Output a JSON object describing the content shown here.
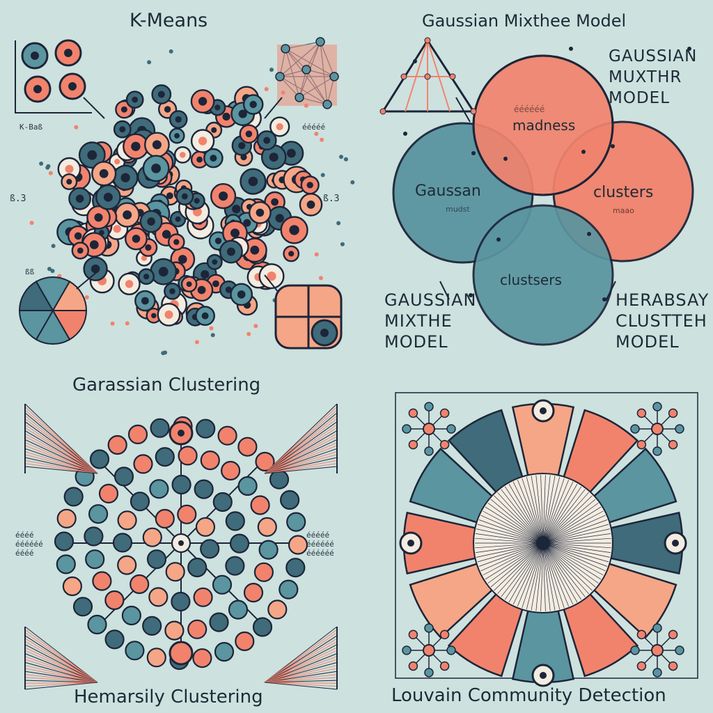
{
  "colors": {
    "background": "#cde1df",
    "coral": "#f1836d",
    "salmon": "#f5a686",
    "teal": "#5a95a0",
    "teal_dark": "#3f6b7a",
    "navy": "#1d2538",
    "cream": "#f3ece0"
  },
  "panels": {
    "kmeans": {
      "title": "K-Means",
      "side_left": "K-Baß",
      "side_right": "ééééé",
      "axis_left": "ß.3",
      "axis_right": "ß.3",
      "pie_note": "ßß"
    },
    "gmm": {
      "title": "Gaussian Mixthee Model",
      "corner_label": "GAUSSIAN\nMUXTHR\nMODEL",
      "circle_top": "madness",
      "circle_top_faint": "éééééé",
      "circle_left": "Gaussan",
      "circle_left_sub": "mudst",
      "circle_right": "clusters",
      "circle_right_sub": "maao",
      "circle_bottom": "clustsers",
      "bottom_left_label": "GAUSSIAN\nMIXTHE\nMODEL",
      "bottom_right_label": "HERABSAY\nCLUSTTEH\nMODEL"
    },
    "gaussian_clustering": {
      "title": "Garassian Clustering",
      "left_note": "éééé\néééééé\néééé",
      "right_note": "ééééé\néééééé\néééééé"
    },
    "hierarchical": {
      "title": "Hemarsily Clustering"
    },
    "louvain": {
      "title": "Louvain Community Detection"
    }
  }
}
